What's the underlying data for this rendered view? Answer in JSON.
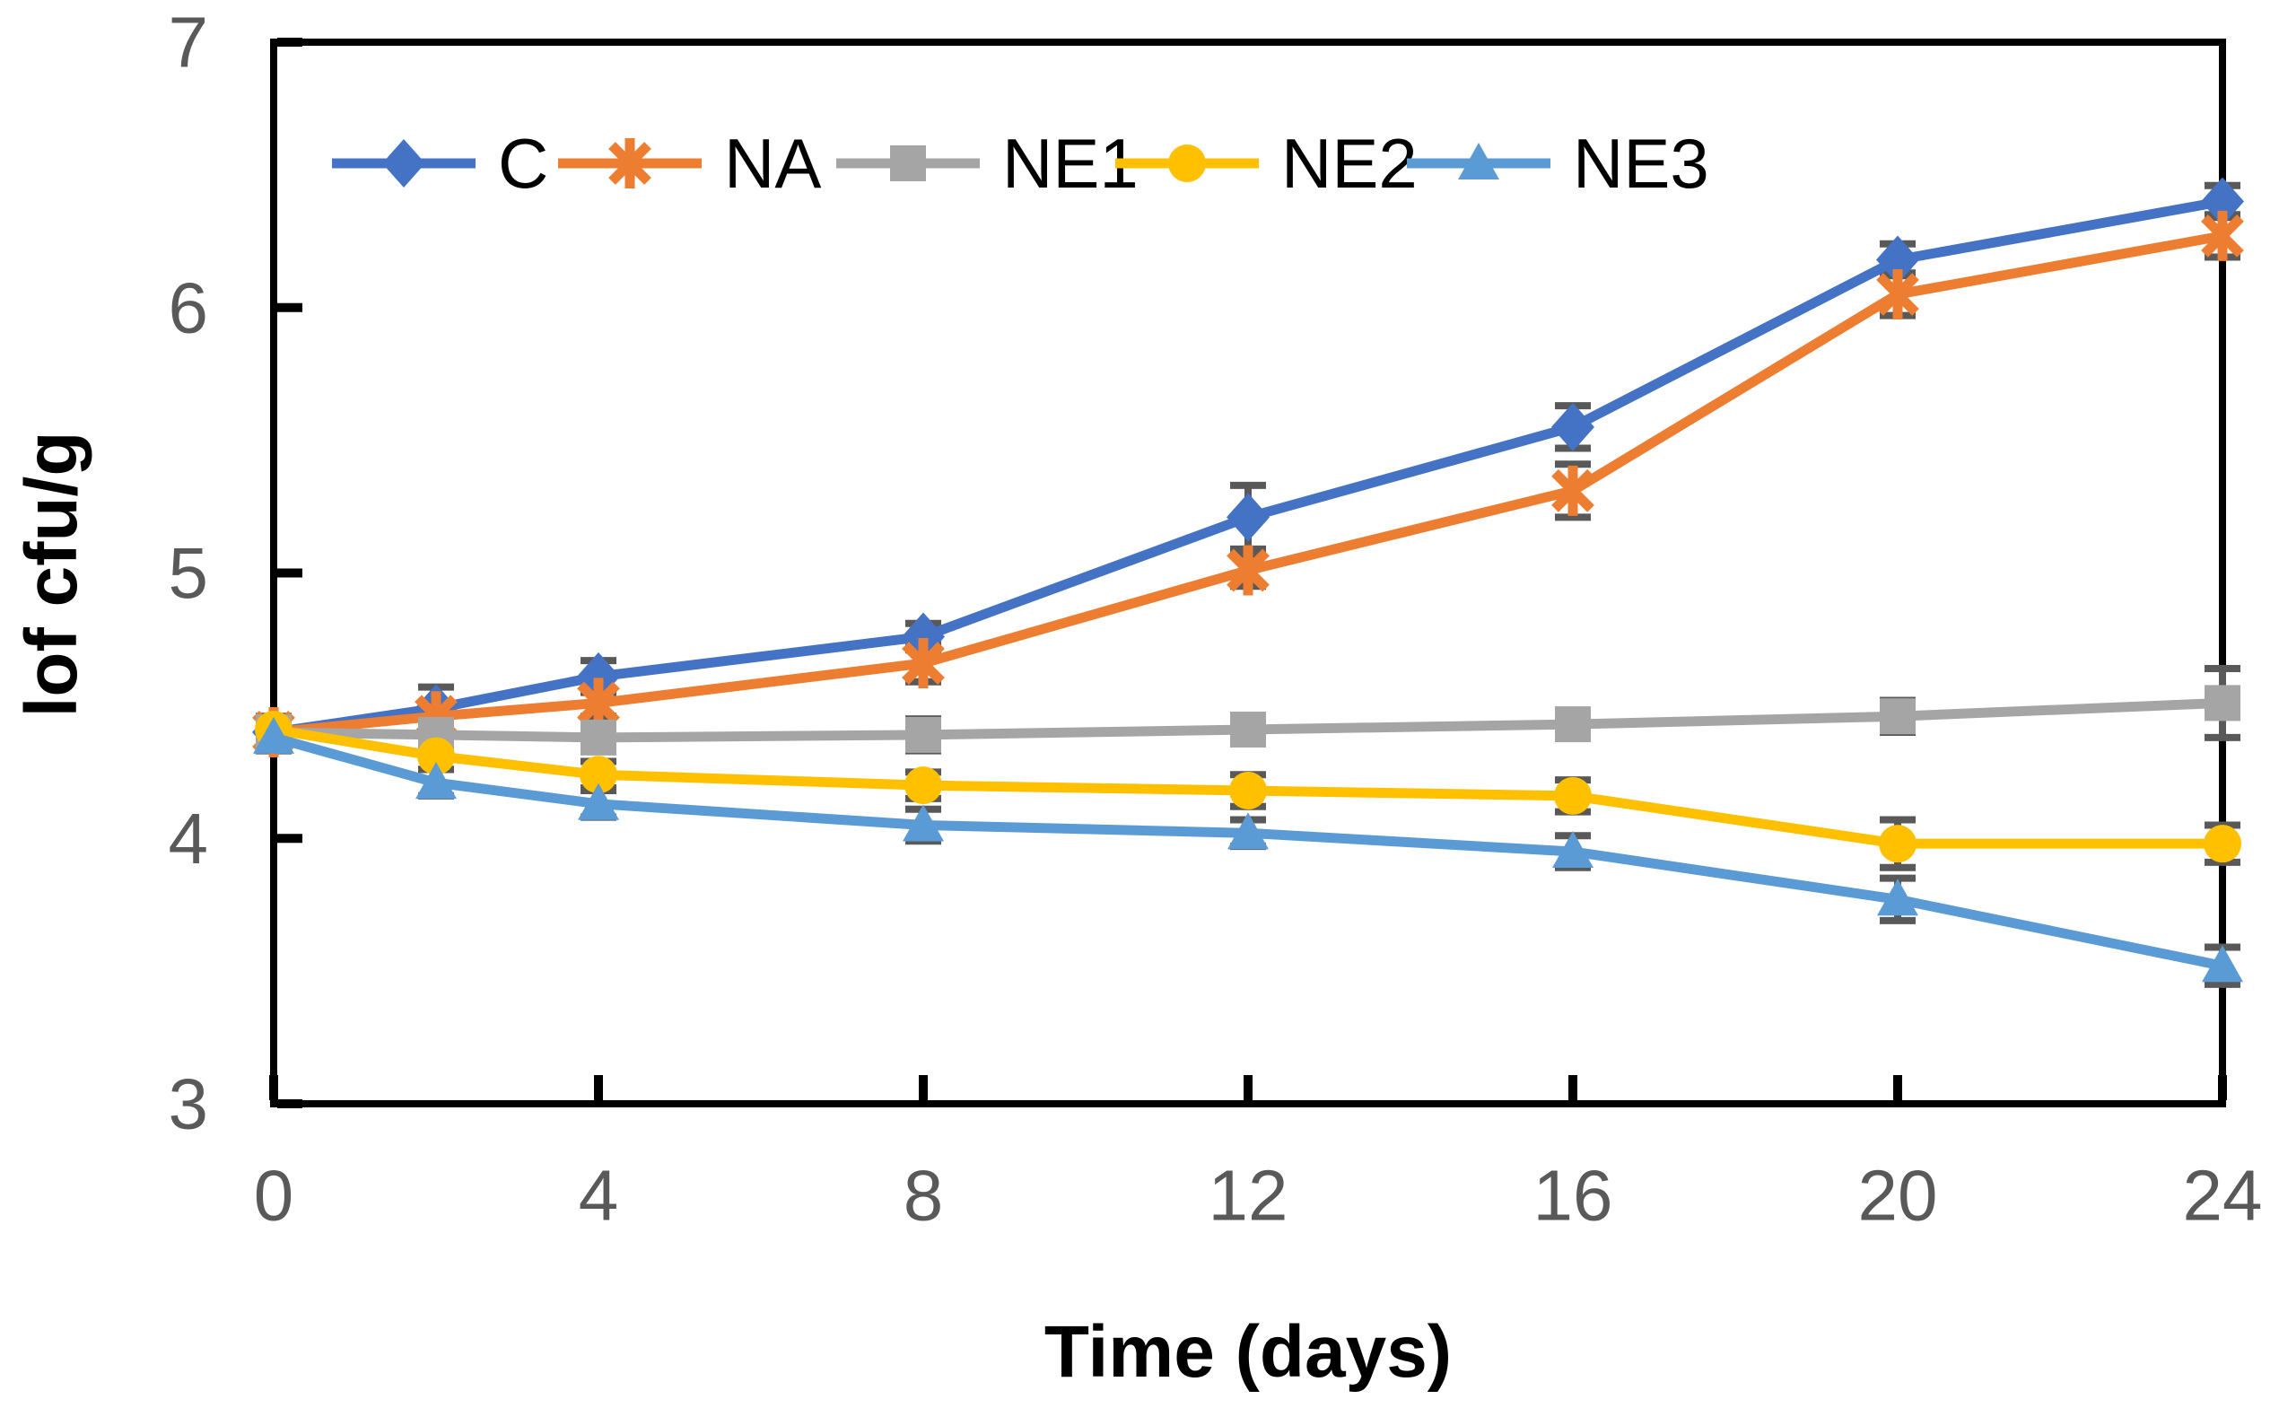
{
  "chart_data": {
    "type": "line",
    "title": "",
    "xlabel": "Time (days)",
    "ylabel": "lof cfu/g",
    "x": [
      0,
      2,
      4,
      8,
      12,
      16,
      20,
      24
    ],
    "x_ticks": [
      0,
      4,
      8,
      12,
      16,
      20,
      24
    ],
    "y_ticks": [
      3,
      4,
      5,
      6,
      7
    ],
    "xlim": [
      0,
      24
    ],
    "ylim": [
      3,
      7
    ],
    "grid": false,
    "legend_position": "top-inside-horizontal",
    "background_color": "#ffffff",
    "axis_color": "#000000",
    "tick_label_color": "#595959",
    "error_bar_color": "#595959",
    "series": [
      {
        "name": "C",
        "color": "#4472C4",
        "marker": "diamond",
        "values": [
          4.4,
          4.49,
          4.61,
          4.76,
          5.21,
          5.55,
          6.18,
          6.4
        ],
        "errors": [
          0.05,
          0.08,
          0.06,
          0.05,
          0.12,
          0.08,
          0.06,
          0.06
        ]
      },
      {
        "name": "NA",
        "color": "#ED7D31",
        "marker": "asterisk",
        "values": [
          4.4,
          4.46,
          4.51,
          4.66,
          5.01,
          5.31,
          6.05,
          6.27
        ],
        "errors": [
          0.05,
          0.05,
          0.05,
          0.07,
          0.06,
          0.1,
          0.08,
          0.08
        ]
      },
      {
        "name": "NE1",
        "color": "#A5A5A5",
        "marker": "square",
        "values": [
          4.4,
          4.39,
          4.38,
          4.39,
          4.41,
          4.43,
          4.46,
          4.51
        ],
        "errors": [
          0.05,
          0.05,
          0.05,
          0.06,
          0.05,
          0.05,
          0.06,
          0.13
        ]
      },
      {
        "name": "NE2",
        "color": "#FFC000",
        "marker": "circle",
        "values": [
          4.41,
          4.31,
          4.24,
          4.2,
          4.18,
          4.16,
          3.98,
          3.98
        ],
        "errors": [
          0.05,
          0.05,
          0.05,
          0.05,
          0.06,
          0.06,
          0.09,
          0.07
        ]
      },
      {
        "name": "NE3",
        "color": "#5B9BD5",
        "marker": "triangle",
        "values": [
          4.38,
          4.21,
          4.13,
          4.05,
          4.02,
          3.95,
          3.77,
          3.52
        ],
        "errors": [
          0.05,
          0.05,
          0.05,
          0.06,
          0.05,
          0.06,
          0.08,
          0.07
        ]
      }
    ]
  }
}
